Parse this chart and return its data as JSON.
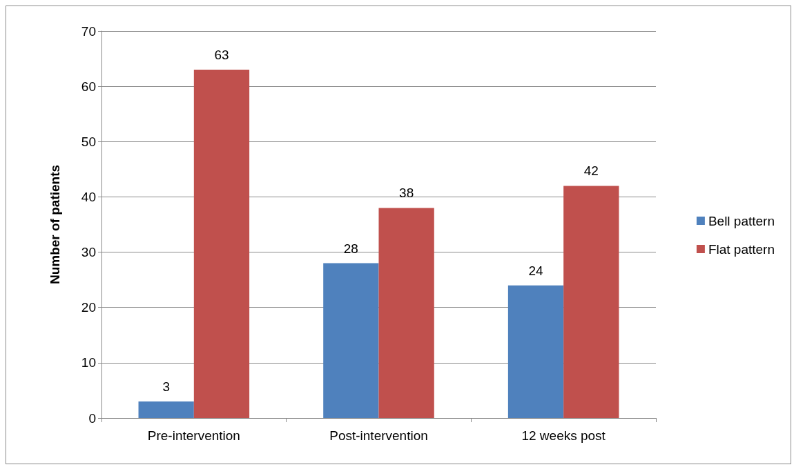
{
  "chart_data": {
    "type": "bar",
    "ylabel": "Number of patients",
    "categories": [
      "Pre-intervention",
      "Post-intervention",
      "12 weeks post"
    ],
    "series": [
      {
        "name": "Bell pattern",
        "color": "#4f81bd",
        "values": [
          3,
          28,
          24
        ]
      },
      {
        "name": "Flat pattern",
        "color": "#c0504d",
        "values": [
          63,
          38,
          42
        ]
      }
    ],
    "ylim": [
      0,
      70
    ],
    "yticks": [
      0,
      10,
      20,
      30,
      40,
      50,
      60,
      70
    ],
    "grid": "y",
    "legend": "right",
    "data_labels": true
  }
}
